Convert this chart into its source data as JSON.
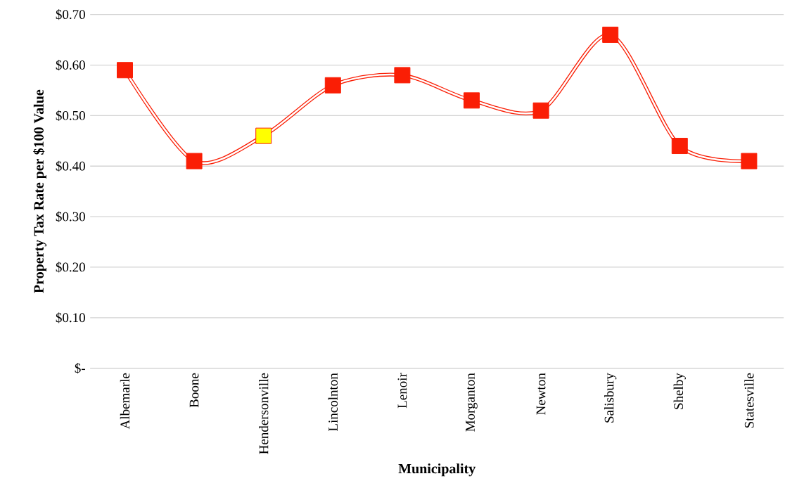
{
  "chart_data": {
    "type": "line",
    "xlabel": "Municipality",
    "ylabel": "Property Tax Rate per $100 Value",
    "categories": [
      "Albemarle",
      "Boone",
      "Hendersonville",
      "Lincolnton",
      "Lenoir",
      "Morganton",
      "Newton",
      "Salisbury",
      "Shelby",
      "Statesville"
    ],
    "series": [
      {
        "color": "#fa1e05",
        "colors": [
          "#fa1e05",
          "#fa1e05",
          "#ffff00",
          "#fa1e05",
          "#fa1e05",
          "#fa1e05",
          "#fa1e05",
          "#fa1e05",
          "#fa1e05",
          "#fa1e05"
        ],
        "values": [
          0.59,
          0.41,
          0.46,
          0.56,
          0.58,
          0.53,
          0.51,
          0.66,
          0.44,
          0.41
        ]
      }
    ],
    "ylim": [
      0,
      0.7
    ],
    "yticks": [
      {
        "value": 0,
        "label": "$-"
      },
      {
        "value": 0.1,
        "label": "$0.10"
      },
      {
        "value": 0.2,
        "label": "$0.20"
      },
      {
        "value": 0.3,
        "label": "$0.30"
      },
      {
        "value": 0.4,
        "label": "$0.40"
      },
      {
        "value": 0.5,
        "label": "$0.50"
      },
      {
        "value": 0.6,
        "label": "$0.60"
      },
      {
        "value": 0.7,
        "label": "$0.70"
      }
    ],
    "grid": "y",
    "marker": "square",
    "line_style": "solid"
  }
}
